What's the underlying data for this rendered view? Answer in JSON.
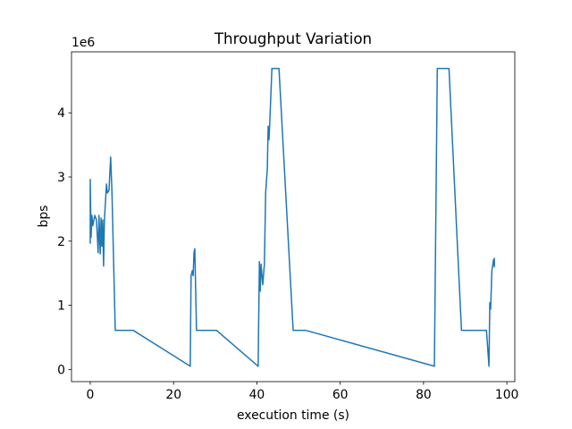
{
  "chart_data": {
    "type": "line",
    "title": "Throughput Variation",
    "x_label": "execution time (s)",
    "y_label": "bps",
    "y_offset_label": "1e6",
    "xlim": [
      -4.5,
      101.9
    ],
    "ylim": [
      -0.19,
      4.95
    ],
    "xticks": [
      0,
      20,
      40,
      60,
      80,
      100
    ],
    "yticks": [
      0,
      1,
      2,
      3,
      4
    ],
    "grid": false,
    "series": [
      {
        "color": "#1f77b4",
        "x": [
          0,
          0,
          0.2,
          0.4,
          0.6,
          1.1,
          1.5,
          1.9,
          2.1,
          2.4,
          2.6,
          2.8,
          3.0,
          3.2,
          3.4,
          3.9,
          4.1,
          4.5,
          4.9,
          5.2,
          6.0,
          10.3,
          24.0,
          24.2,
          24.5,
          24.7,
          24.9,
          25.1,
          25.5,
          30.3,
          40.3,
          40.6,
          40.8,
          41.0,
          41.4,
          41.8,
          42.1,
          42.5,
          42.7,
          42.9,
          43.1,
          43.6,
          45.3,
          48.7,
          51.7,
          82.6,
          83.3,
          86.1,
          89.1,
          95.1,
          95.7,
          95.9,
          96.1,
          96.4,
          96.8,
          97.0,
          97.0
        ],
        "values": [
          1.96,
          2.96,
          2.06,
          2.4,
          2.24,
          2.4,
          2.33,
          1.82,
          2.4,
          1.8,
          2.36,
          1.92,
          2.33,
          1.61,
          2.33,
          2.89,
          2.75,
          2.79,
          3.31,
          2.79,
          0.61,
          0.61,
          0.05,
          1.46,
          1.54,
          1.46,
          1.82,
          1.88,
          0.61,
          0.61,
          0.05,
          1.68,
          1.22,
          1.64,
          1.32,
          1.64,
          2.75,
          3.13,
          3.79,
          3.58,
          3.86,
          4.69,
          4.69,
          0.61,
          0.61,
          0.05,
          4.69,
          4.69,
          0.61,
          0.61,
          0.05,
          1.04,
          0.94,
          1.54,
          1.71,
          1.6,
          1.74
        ]
      }
    ]
  }
}
